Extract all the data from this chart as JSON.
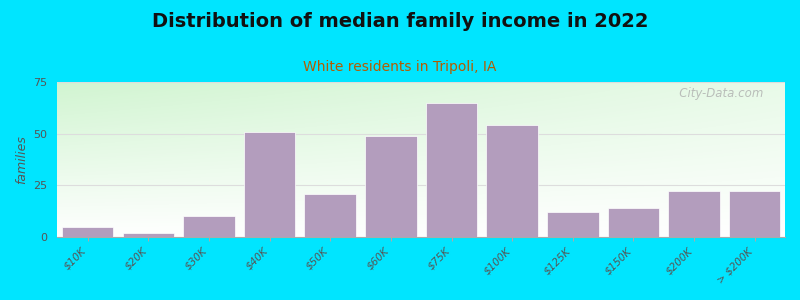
{
  "title": "Distribution of median family income in 2022",
  "subtitle": "White residents in Tripoli, IA",
  "title_fontsize": 14,
  "subtitle_fontsize": 10,
  "ylabel": "families",
  "categories": [
    "$10K",
    "$20K",
    "$30K",
    "$40K",
    "$50K",
    "$60K",
    "$75K",
    "$100K",
    "$125K",
    "$150K",
    "$200K",
    "> $200K"
  ],
  "values": [
    5,
    2,
    10,
    51,
    21,
    49,
    65,
    54,
    12,
    14,
    22,
    22
  ],
  "bar_color": "#b39dbd",
  "background_color": "#00e5ff",
  "ylim": [
    0,
    75
  ],
  "yticks": [
    0,
    25,
    50,
    75
  ],
  "watermark": "   City-Data.com",
  "title_color": "#111111",
  "subtitle_color": "#b35c00",
  "ylabel_color": "#555555",
  "grid_color": "#dddddd",
  "tick_label_color": "#555555",
  "bg_left_color": "#c8efd4",
  "bg_right_color": "#e8f4f8",
  "bg_bottom_color": "#ffffff"
}
